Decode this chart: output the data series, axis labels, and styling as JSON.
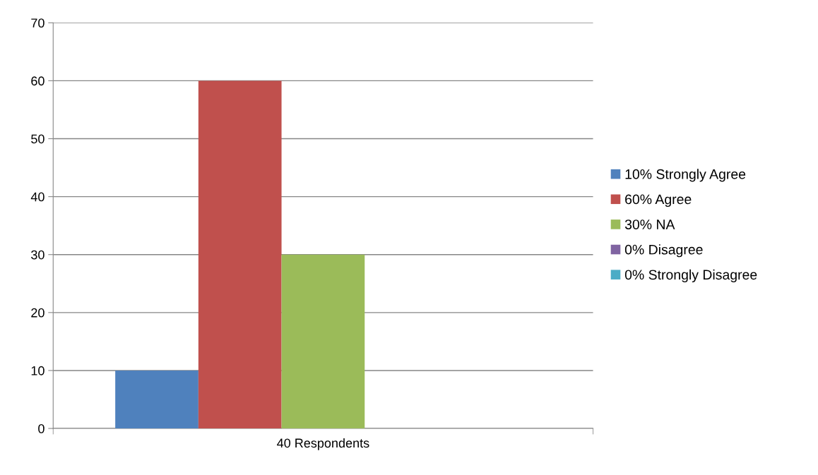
{
  "chart_data": {
    "type": "bar",
    "categories": [
      "40 Respondents"
    ],
    "series": [
      {
        "name": "10% Strongly Agree",
        "color": "#4f81bd",
        "values": [
          10
        ]
      },
      {
        "name": "60% Agree",
        "color": "#c0504d",
        "values": [
          60
        ]
      },
      {
        "name": "30% NA",
        "color": "#9bbb59",
        "values": [
          30
        ]
      },
      {
        "name": "0% Disagree",
        "color": "#8064a2",
        "values": [
          0
        ]
      },
      {
        "name": "0% Strongly Disagree",
        "color": "#4bacc6",
        "values": [
          0
        ]
      }
    ],
    "ylim": [
      0,
      70
    ],
    "yticks": [
      0,
      10,
      20,
      30,
      40,
      50,
      60,
      70
    ],
    "grid": "y",
    "legend": "right"
  }
}
